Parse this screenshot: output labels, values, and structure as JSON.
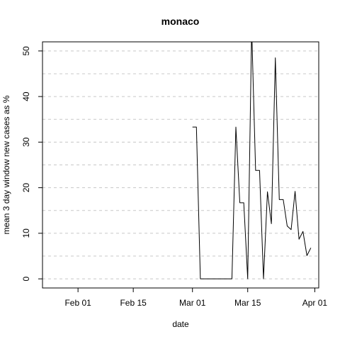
{
  "chart_data": {
    "type": "line",
    "title": "monaco",
    "xlabel": "date",
    "ylabel": "mean  3  day window new cases as %",
    "x_tick_labels": [
      "Feb 01",
      "Feb 15",
      "Mar 01",
      "Mar 15",
      "Apr 01"
    ],
    "x_ticks": [
      "2020-02-01",
      "2020-02-15",
      "2020-03-01",
      "2020-03-15",
      "2020-04-01"
    ],
    "y_ticks": [
      0,
      10,
      20,
      30,
      40,
      50
    ],
    "xlim": [
      "2020-01-23",
      "2020-04-02"
    ],
    "ylim": [
      -2,
      52
    ],
    "grid": true,
    "grid_style": "dashed horizontal",
    "colors": {
      "line": "#000000",
      "grid": "#c8c8c8",
      "frame": "#000000"
    },
    "series": [
      {
        "x": [
          "2020-03-01",
          "2020-03-02",
          "2020-03-03",
          "2020-03-04",
          "2020-03-05",
          "2020-03-06",
          "2020-03-07",
          "2020-03-08",
          "2020-03-09",
          "2020-03-10",
          "2020-03-11",
          "2020-03-12",
          "2020-03-13",
          "2020-03-14",
          "2020-03-15",
          "2020-03-16",
          "2020-03-17",
          "2020-03-18",
          "2020-03-19",
          "2020-03-20",
          "2020-03-21",
          "2020-03-22",
          "2020-03-23",
          "2020-03-24",
          "2020-03-25",
          "2020-03-26",
          "2020-03-27",
          "2020-03-28",
          "2020-03-29",
          "2020-03-30",
          "2020-03-31"
        ],
        "values": [
          33.3,
          33.3,
          0,
          0,
          0,
          0,
          0,
          0,
          0,
          0,
          0,
          33.3,
          16.7,
          16.7,
          0,
          55,
          23.8,
          23.8,
          0,
          19.1,
          12.1,
          48.5,
          17.4,
          17.4,
          11.6,
          10.8,
          19.2,
          8.7,
          10.4,
          5.1,
          6.8
        ]
      }
    ]
  }
}
